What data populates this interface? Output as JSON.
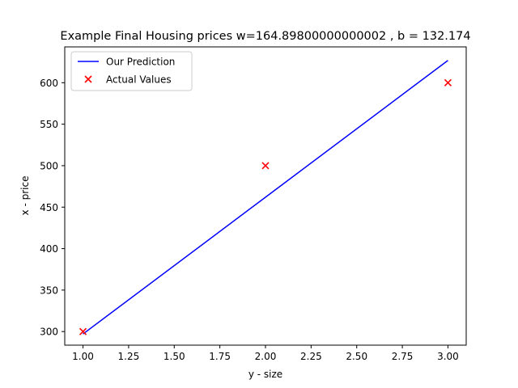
{
  "chart_data": {
    "type": "line",
    "title": "Example Final Housing prices w=164.89800000000002 , b = 132.174",
    "xlabel": "y - size",
    "ylabel": "x - price",
    "xlim": [
      0.9,
      3.1
    ],
    "ylim": [
      283.6,
      643.2
    ],
    "x_ticks": [
      "1.00",
      "1.25",
      "1.50",
      "1.75",
      "2.00",
      "2.25",
      "2.50",
      "2.75",
      "3.00"
    ],
    "y_ticks": [
      "300",
      "350",
      "400",
      "450",
      "500",
      "550",
      "600"
    ],
    "grid": false,
    "legend_position": "top-left",
    "series": [
      {
        "name": "Our Prediction",
        "kind": "line",
        "color": "#0000ff",
        "x": [
          1,
          2,
          3
        ],
        "y": [
          297.072,
          461.97,
          626.868
        ]
      },
      {
        "name": "Actual Values",
        "kind": "scatter",
        "marker": "x",
        "color": "#ff0000",
        "x": [
          1,
          2,
          3
        ],
        "y": [
          300,
          500,
          600
        ]
      }
    ]
  }
}
